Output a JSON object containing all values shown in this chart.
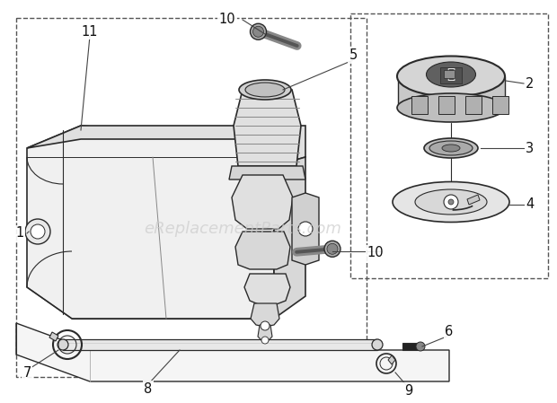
{
  "bg": "#ffffff",
  "lc": "#2a2a2a",
  "dc": "#555555",
  "wm_text": "eReplacementParts.com",
  "wm_color": "#cccccc",
  "wm_fs": 13,
  "lbl_fs": 10.5,
  "lbl_color": "#111111",
  "tank_fill": "#f0f0f0",
  "tank_top_fill": "#e0e0e0",
  "tank_right_fill": "#d8d8d8",
  "cap_fill": "#d4d4d4",
  "gasket_fill": "#c0c0c0",
  "float_fill": "#e8e8e8"
}
